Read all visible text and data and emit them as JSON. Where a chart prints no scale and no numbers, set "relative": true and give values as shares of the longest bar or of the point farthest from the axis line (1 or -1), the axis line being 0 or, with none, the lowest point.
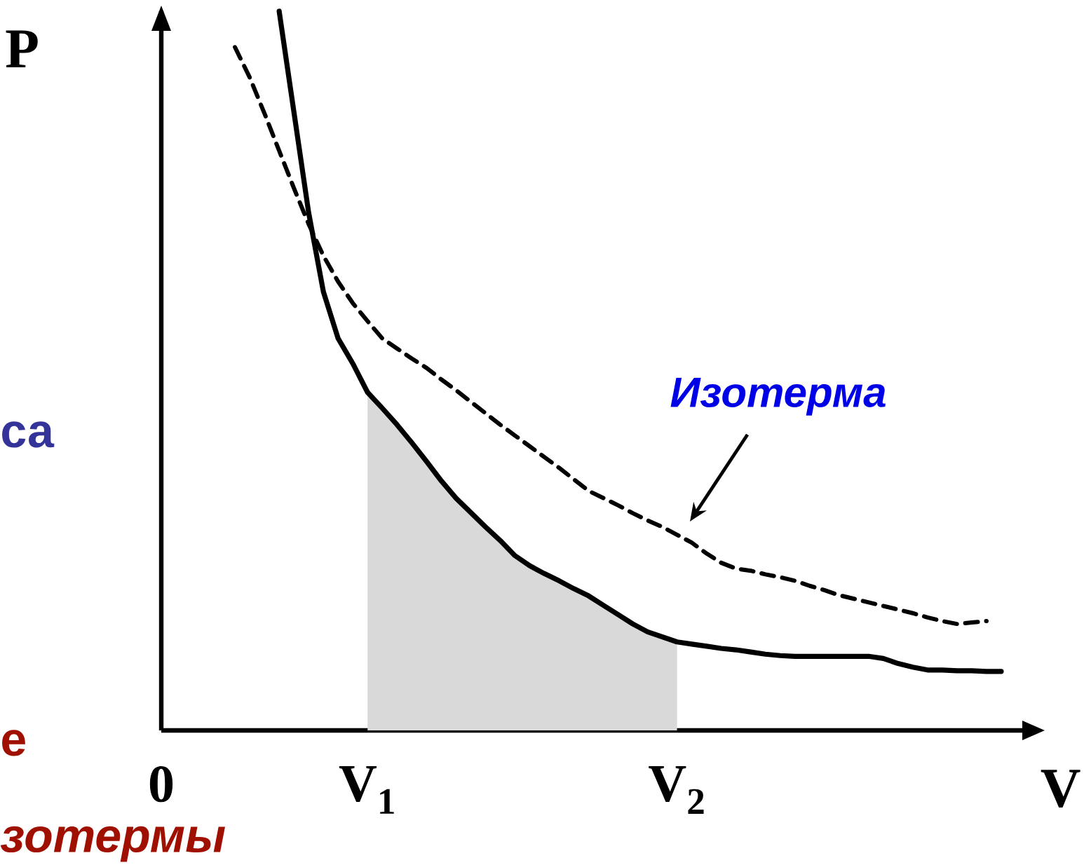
{
  "chart_data": {
    "type": "line",
    "relative": true,
    "xlabel": "V",
    "ylabel": "P",
    "categories": [
      "0",
      null,
      null,
      null,
      null,
      null,
      null,
      null,
      null,
      null,
      null,
      null,
      null,
      null,
      "V$_{1}$",
      null,
      null,
      null,
      null,
      null,
      null,
      null,
      null,
      null,
      null,
      null,
      null,
      null,
      null,
      null,
      null,
      null,
      null,
      null,
      null,
      "V$_{2}$",
      null,
      null,
      null,
      null,
      null,
      null,
      null,
      null,
      null,
      null,
      null,
      null,
      null,
      null,
      null,
      null,
      null,
      null,
      null,
      null,
      null,
      null,
      null,
      null
    ],
    "series": [
      {
        "type": "area",
        "color": "#d9d9d9",
        "values": [
          null,
          null,
          null,
          null,
          null,
          null,
          null,
          null,
          null,
          null,
          null,
          null,
          null,
          null,
          0.47,
          0.448,
          0.425,
          0.4,
          0.374,
          0.347,
          0.323,
          0.303,
          0.283,
          0.264,
          0.243,
          0.229,
          0.218,
          0.208,
          0.197,
          0.187,
          0.174,
          0.161,
          0.148,
          0.137,
          0.13,
          0.123,
          null,
          null,
          null,
          null,
          null,
          null,
          null,
          null,
          null,
          null,
          null,
          null,
          null,
          null,
          null,
          null,
          null,
          null,
          null,
          null,
          null,
          null,
          null,
          null
        ]
      },
      {
        "color": "#000000",
        "line_style": "solid",
        "values": [
          null,
          null,
          null,
          null,
          null,
          null,
          null,
          null,
          1.0,
          0.86,
          0.72,
          0.61,
          0.545,
          0.51,
          0.47,
          0.448,
          0.425,
          0.4,
          0.374,
          0.347,
          0.323,
          0.303,
          0.283,
          0.264,
          0.243,
          0.229,
          0.218,
          0.208,
          0.197,
          0.187,
          0.174,
          0.161,
          0.148,
          0.137,
          0.13,
          0.123,
          0.12,
          0.117,
          0.114,
          0.112,
          0.109,
          0.106,
          0.104,
          0.103,
          0.103,
          0.103,
          0.103,
          0.103,
          0.103,
          0.1,
          0.093,
          0.088,
          0.084,
          0.084,
          0.083,
          0.083,
          0.082,
          0.082,
          null,
          null
        ]
      },
      {
        "color": "#000000",
        "line_style": "dashed",
        "values": [
          null,
          null,
          null,
          null,
          null,
          0.95,
          0.908,
          0.858,
          0.806,
          0.754,
          0.704,
          0.66,
          0.624,
          0.594,
          0.569,
          0.545,
          0.531,
          0.517,
          0.504,
          0.488,
          0.473,
          0.457,
          0.441,
          0.425,
          0.41,
          0.395,
          0.38,
          0.365,
          0.349,
          0.333,
          0.323,
          0.313,
          0.302,
          0.292,
          0.283,
          0.272,
          0.261,
          0.246,
          0.233,
          0.225,
          0.222,
          0.217,
          0.213,
          0.208,
          0.201,
          0.195,
          0.188,
          0.183,
          0.178,
          0.173,
          0.168,
          0.163,
          0.157,
          0.152,
          0.148,
          0.15,
          0.152,
          null,
          null,
          null
        ]
      }
    ],
    "annotations": [
      "Изотерма",
      "са",
      "е",
      "зотермы"
    ]
  }
}
